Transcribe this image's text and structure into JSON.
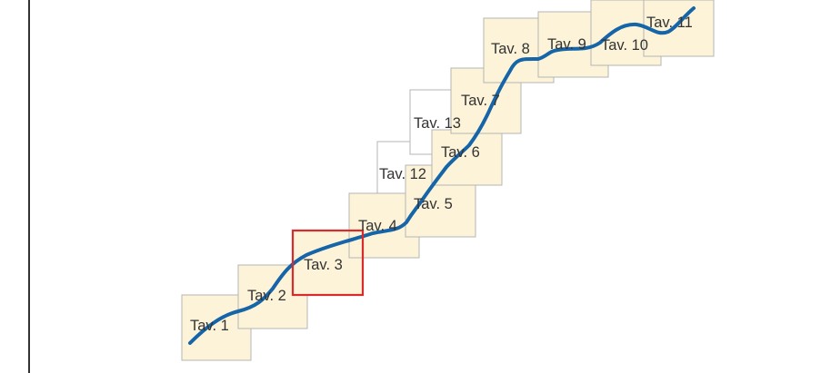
{
  "sheets": [
    {
      "label": "Tav. 1",
      "filled": true,
      "selected": false
    },
    {
      "label": "Tav. 2",
      "filled": true,
      "selected": false
    },
    {
      "label": "Tav. 3",
      "filled": true,
      "selected": true
    },
    {
      "label": "Tav. 4",
      "filled": true,
      "selected": false
    },
    {
      "label": "Tav. 5",
      "filled": true,
      "selected": false
    },
    {
      "label": "Tav. 6",
      "filled": true,
      "selected": false
    },
    {
      "label": "Tav. 7",
      "filled": true,
      "selected": false
    },
    {
      "label": "Tav. 8",
      "filled": true,
      "selected": false
    },
    {
      "label": "Tav. 9",
      "filled": true,
      "selected": false
    },
    {
      "label": "Tav. 10",
      "filled": true,
      "selected": false
    },
    {
      "label": "Tav. 11",
      "filled": true,
      "selected": false
    },
    {
      "label": "Tav. 12",
      "filled": false,
      "selected": false
    },
    {
      "label": "Tav. 13",
      "filled": false,
      "selected": false
    }
  ],
  "colors": {
    "sheet_fill": "#fdf3d8",
    "sheet_stroke": "#b4b4b4",
    "unfilled_sheet_fill": "#ffffff",
    "selected_stroke": "#d92b2b",
    "route_line": "#1565a8",
    "frame_border": "#333333"
  }
}
